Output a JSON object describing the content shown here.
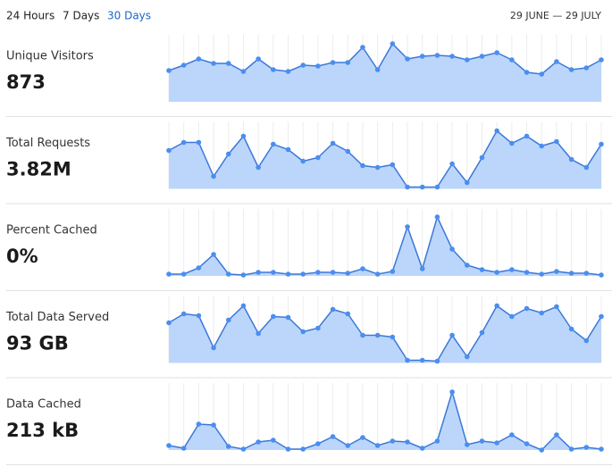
{
  "header": {
    "tabs": [
      "24 Hours",
      "7 Days",
      "30 Days"
    ],
    "active_tab": 2,
    "date_range": "29 JUNE — 29 JULY"
  },
  "chart_data": [
    {
      "type": "area",
      "title": "Unique Visitors",
      "value": "873",
      "ylim": [
        0,
        75
      ],
      "color": "#3b78d8",
      "values": [
        35,
        41,
        48,
        43,
        43,
        34,
        48,
        36,
        34,
        41,
        40,
        44,
        44,
        61,
        36,
        65,
        48,
        51,
        52,
        51,
        47,
        51,
        55,
        47,
        33,
        31,
        45,
        36,
        38,
        47
      ]
    },
    {
      "type": "area",
      "title": "Total Requests",
      "value": "3.82M",
      "ylim": [
        0,
        75
      ],
      "color": "#3b78d8",
      "values": [
        43,
        52,
        52,
        14,
        39,
        59,
        24,
        50,
        44,
        31,
        35,
        51,
        42,
        26,
        24,
        27,
        2,
        2,
        2,
        28,
        7,
        35,
        65,
        51,
        59,
        48,
        53,
        33,
        24,
        50
      ]
    },
    {
      "type": "area",
      "title": "Percent Cached",
      "value": "0%",
      "ylim": [
        0,
        75
      ],
      "color": "#3b78d8",
      "values": [
        2,
        2,
        9,
        24,
        2,
        1,
        4,
        4,
        2,
        2,
        4,
        4,
        3,
        8,
        2,
        5,
        55,
        8,
        66,
        30,
        12,
        7,
        4,
        7,
        4,
        2,
        5,
        3,
        3,
        1
      ]
    },
    {
      "type": "area",
      "title": "Total Data Served",
      "value": "93 GB",
      "ylim": [
        0,
        75
      ],
      "color": "#3b78d8",
      "values": [
        45,
        55,
        53,
        17,
        48,
        64,
        33,
        52,
        51,
        35,
        39,
        60,
        55,
        31,
        31,
        29,
        3,
        3,
        2,
        31,
        7,
        34,
        64,
        52,
        61,
        56,
        63,
        38,
        25,
        52
      ]
    },
    {
      "type": "area",
      "title": "Data Cached",
      "value": "213 kB",
      "ylim": [
        0,
        75
      ],
      "color": "#3b78d8",
      "values": [
        5,
        2,
        29,
        28,
        4,
        1,
        9,
        11,
        1,
        1,
        7,
        15,
        5,
        14,
        5,
        10,
        9,
        2,
        10,
        65,
        6,
        10,
        8,
        17,
        7,
        0,
        17,
        1,
        3,
        1
      ]
    }
  ]
}
